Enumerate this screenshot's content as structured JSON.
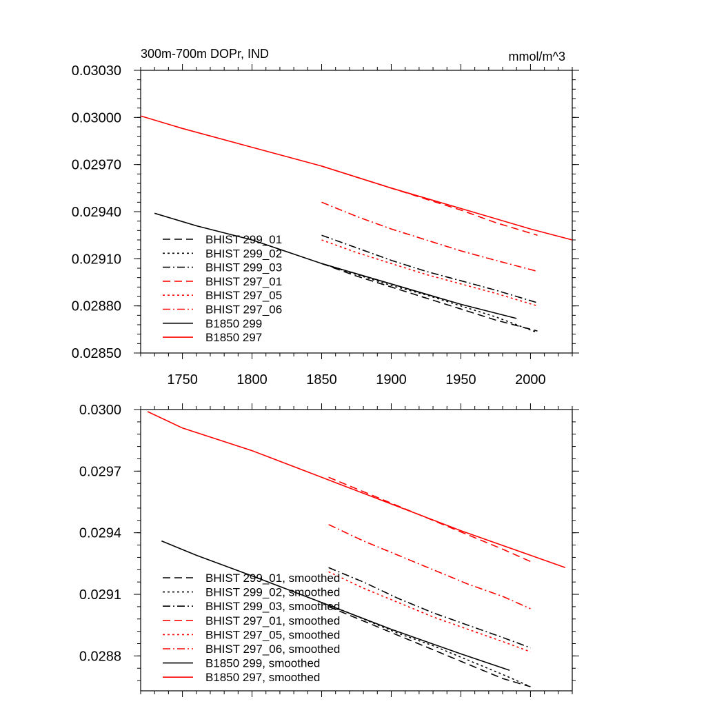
{
  "chart_data": [
    {
      "type": "line",
      "title": "300m-700m DOPr, IND",
      "units": "mmol/m^3",
      "xlim": [
        1720,
        2030
      ],
      "ylim": [
        0.0285,
        0.0303
      ],
      "x_ticks": [
        1750,
        1800,
        1850,
        1900,
        1950,
        2000
      ],
      "x_tick_labels": [
        "1750",
        "1800",
        "1850",
        "1900",
        "1950",
        "2000"
      ],
      "y_ticks": [
        0.0285,
        0.0288,
        0.0291,
        0.0294,
        0.0297,
        0.03,
        0.0303
      ],
      "y_tick_labels": [
        "0.02850",
        "0.02880",
        "0.02910",
        "0.02940",
        "0.02970",
        "0.03000",
        "0.03030"
      ],
      "legend_position": "bottom-left",
      "series": [
        {
          "name": "BHIST 299_01",
          "color": "#000000",
          "dash": "dash",
          "x": [
            1850,
            1875,
            1900,
            1925,
            1950,
            1975,
            2005
          ],
          "y": [
            0.02907,
            0.02899,
            0.02892,
            0.02885,
            0.02878,
            0.02871,
            0.02864
          ]
        },
        {
          "name": "BHIST 299_02",
          "color": "#000000",
          "dash": "dot",
          "x": [
            1850,
            1875,
            1900,
            1925,
            1950,
            1975,
            2005
          ],
          "y": [
            0.02907,
            0.029,
            0.02893,
            0.02887,
            0.0288,
            0.02873,
            0.02863
          ]
        },
        {
          "name": "BHIST 299_03",
          "color": "#000000",
          "dash": "dashdot",
          "x": [
            1850,
            1875,
            1900,
            1925,
            1950,
            1975,
            2005
          ],
          "y": [
            0.02925,
            0.02917,
            0.02909,
            0.02902,
            0.02896,
            0.0289,
            0.02882
          ]
        },
        {
          "name": "BHIST 297_01",
          "color": "#ff0000",
          "dash": "dash",
          "x": [
            1850,
            1875,
            1900,
            1925,
            1950,
            1975,
            2005
          ],
          "y": [
            0.02969,
            0.02962,
            0.02955,
            0.02948,
            0.02941,
            0.02933,
            0.02925
          ]
        },
        {
          "name": "BHIST 297_05",
          "color": "#ff0000",
          "dash": "dot",
          "x": [
            1850,
            1875,
            1900,
            1925,
            1950,
            1975,
            2005
          ],
          "y": [
            0.02922,
            0.02914,
            0.02907,
            0.029,
            0.02894,
            0.02888,
            0.0288
          ]
        },
        {
          "name": "BHIST 297_06",
          "color": "#ff0000",
          "dash": "dashdot",
          "x": [
            1850,
            1875,
            1900,
            1925,
            1950,
            1975,
            2005
          ],
          "y": [
            0.02946,
            0.02937,
            0.02929,
            0.02922,
            0.02915,
            0.02909,
            0.02902
          ]
        },
        {
          "name": "B1850 299",
          "color": "#000000",
          "dash": "solid",
          "x": [
            1730,
            1760,
            1800,
            1850,
            1900,
            1950,
            1990
          ],
          "y": [
            0.02939,
            0.02931,
            0.02922,
            0.02907,
            0.02894,
            0.02881,
            0.02872
          ]
        },
        {
          "name": "B1850 297",
          "color": "#ff0000",
          "dash": "solid",
          "x": [
            1720,
            1750,
            1800,
            1850,
            1900,
            1950,
            2000,
            2030
          ],
          "y": [
            0.03001,
            0.02993,
            0.02981,
            0.02969,
            0.02955,
            0.02942,
            0.02929,
            0.02922
          ]
        }
      ]
    },
    {
      "type": "line",
      "title": "",
      "units": "",
      "xlim": [
        1720,
        2030
      ],
      "ylim": [
        0.02863,
        0.03
      ],
      "x_ticks": [
        1750,
        1800,
        1850,
        1900,
        1950,
        2000
      ],
      "y_ticks": [
        0.0288,
        0.0291,
        0.0294,
        0.0297,
        0.03
      ],
      "y_tick_labels": [
        "0.0288",
        "0.0291",
        "0.0294",
        "0.0297",
        "0.0300"
      ],
      "legend_position": "bottom-left",
      "series": [
        {
          "name": "BHIST 299_01, smoothed",
          "color": "#000000",
          "dash": "dash",
          "x": [
            1855,
            1880,
            1905,
            1930,
            1955,
            1980,
            2000
          ],
          "y": [
            0.02904,
            0.02897,
            0.0289,
            0.02883,
            0.02876,
            0.02869,
            0.02865
          ]
        },
        {
          "name": "BHIST 299_02, smoothed",
          "color": "#000000",
          "dash": "dot",
          "x": [
            1855,
            1880,
            1905,
            1930,
            1955,
            1980,
            2000
          ],
          "y": [
            0.02905,
            0.02898,
            0.02891,
            0.02885,
            0.02878,
            0.02871,
            0.02865
          ]
        },
        {
          "name": "BHIST 299_03, smoothed",
          "color": "#000000",
          "dash": "dashdot",
          "x": [
            1855,
            1880,
            1905,
            1930,
            1955,
            1980,
            2000
          ],
          "y": [
            0.02923,
            0.02916,
            0.02908,
            0.02901,
            0.02895,
            0.02889,
            0.02884
          ]
        },
        {
          "name": "BHIST 297_01, smoothed",
          "color": "#ff0000",
          "dash": "dash",
          "x": [
            1855,
            1880,
            1905,
            1930,
            1955,
            1980,
            2000
          ],
          "y": [
            0.02967,
            0.0296,
            0.02953,
            0.02946,
            0.02939,
            0.02932,
            0.02926
          ]
        },
        {
          "name": "BHIST 297_05, smoothed",
          "color": "#ff0000",
          "dash": "dot",
          "x": [
            1855,
            1880,
            1905,
            1930,
            1955,
            1980,
            2000
          ],
          "y": [
            0.02921,
            0.02913,
            0.02906,
            0.02899,
            0.02893,
            0.02887,
            0.02882
          ]
        },
        {
          "name": "BHIST 297_06, smoothed",
          "color": "#ff0000",
          "dash": "dashdot",
          "x": [
            1855,
            1880,
            1905,
            1930,
            1955,
            1980,
            2000
          ],
          "y": [
            0.02944,
            0.02936,
            0.02929,
            0.02922,
            0.02915,
            0.02909,
            0.02903
          ]
        },
        {
          "name": "B1850 299, smoothed",
          "color": "#000000",
          "dash": "solid",
          "x": [
            1735,
            1760,
            1800,
            1850,
            1900,
            1950,
            1985
          ],
          "y": [
            0.02936,
            0.02929,
            0.02919,
            0.02906,
            0.02893,
            0.02881,
            0.02873
          ]
        },
        {
          "name": "B1850 297, smoothed",
          "color": "#ff0000",
          "dash": "solid",
          "x": [
            1725,
            1750,
            1800,
            1850,
            1900,
            1950,
            2000,
            2025
          ],
          "y": [
            0.02999,
            0.02991,
            0.0298,
            0.02967,
            0.02954,
            0.02941,
            0.02929,
            0.02923
          ]
        }
      ]
    }
  ]
}
